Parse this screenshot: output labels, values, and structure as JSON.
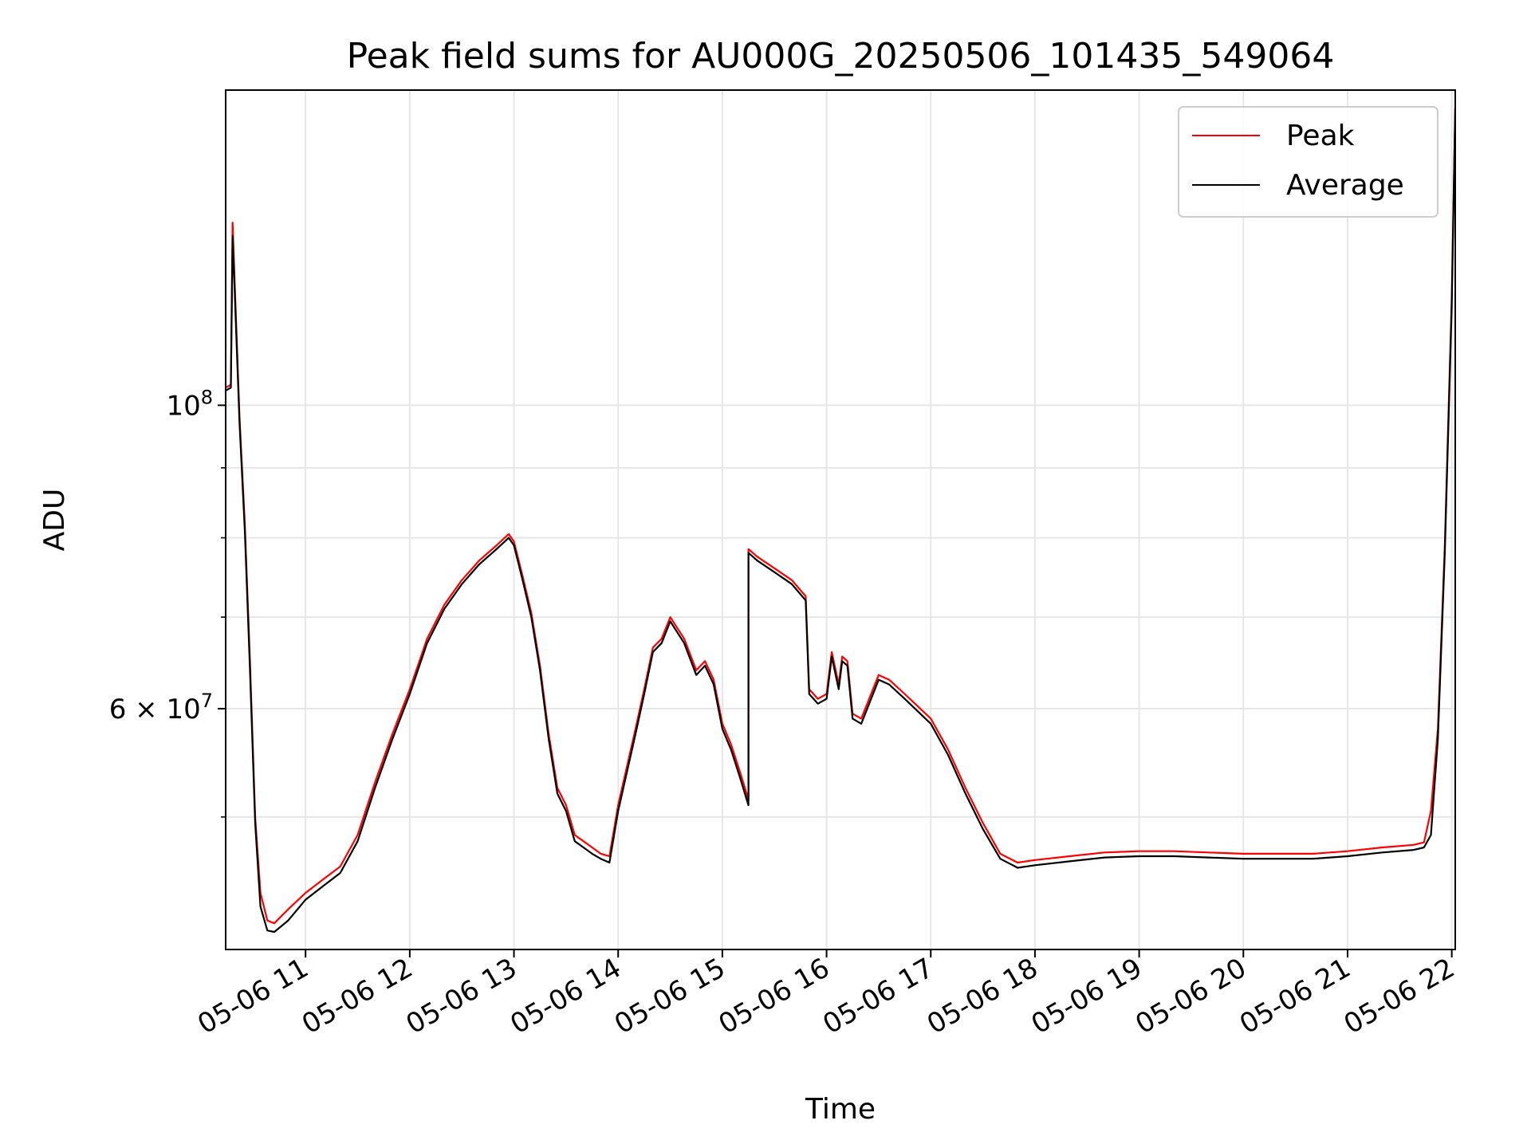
{
  "chart_data": {
    "type": "line",
    "title": "Peak field sums for AU000G_20250506_101435_549064",
    "xlabel": "Time",
    "ylabel": "ADU",
    "y_scale": "log",
    "ylim": [
      40000000,
      170000000
    ],
    "xlim": [
      "05-06 10:14",
      "05-06 22:02"
    ],
    "grid": true,
    "legend_position": "top-right",
    "x_ticks": [
      {
        "t": "05-06 11:00",
        "label": "05-06 11"
      },
      {
        "t": "05-06 12:00",
        "label": "05-06 12"
      },
      {
        "t": "05-06 13:00",
        "label": "05-06 13"
      },
      {
        "t": "05-06 14:00",
        "label": "05-06 14"
      },
      {
        "t": "05-06 15:00",
        "label": "05-06 15"
      },
      {
        "t": "05-06 16:00",
        "label": "05-06 16"
      },
      {
        "t": "05-06 17:00",
        "label": "05-06 17"
      },
      {
        "t": "05-06 18:00",
        "label": "05-06 18"
      },
      {
        "t": "05-06 19:00",
        "label": "05-06 19"
      },
      {
        "t": "05-06 20:00",
        "label": "05-06 20"
      },
      {
        "t": "05-06 21:00",
        "label": "05-06 21"
      },
      {
        "t": "05-06 22:00",
        "label": "05-06 22"
      }
    ],
    "y_major_ticks": [
      {
        "value": 100000000,
        "base": "10",
        "exp": "8"
      },
      {
        "value": 60000000,
        "base": "6 × 10",
        "exp": "7"
      }
    ],
    "y_minor_ticks": [
      50000000,
      70000000,
      80000000,
      90000000
    ],
    "series": [
      {
        "name": "Peak",
        "color": "#ff0000",
        "x": [
          "05-06 10:14",
          "05-06 10:17",
          "05-06 10:18",
          "05-06 10:19",
          "05-06 10:22",
          "05-06 10:25",
          "05-06 10:28",
          "05-06 10:31",
          "05-06 10:34",
          "05-06 10:38",
          "05-06 10:42",
          "05-06 10:46",
          "05-06 10:50",
          "05-06 11:00",
          "05-06 11:10",
          "05-06 11:20",
          "05-06 11:30",
          "05-06 11:40",
          "05-06 11:50",
          "05-06 12:00",
          "05-06 12:10",
          "05-06 12:20",
          "05-06 12:30",
          "05-06 12:40",
          "05-06 12:50",
          "05-06 12:57",
          "05-06 13:00",
          "05-06 13:05",
          "05-06 13:10",
          "05-06 13:15",
          "05-06 13:20",
          "05-06 13:25",
          "05-06 13:30",
          "05-06 13:35",
          "05-06 13:40",
          "05-06 13:45",
          "05-06 13:50",
          "05-06 13:55",
          "05-06 14:00",
          "05-06 14:10",
          "05-06 14:15",
          "05-06 14:20",
          "05-06 14:25",
          "05-06 14:30",
          "05-06 14:38",
          "05-06 14:45",
          "05-06 14:50",
          "05-06 14:55",
          "05-06 15:00",
          "05-06 15:05",
          "05-06 15:10",
          "05-06 15:15",
          "05-06 15:15",
          "05-06 15:20",
          "05-06 15:30",
          "05-06 15:40",
          "05-06 15:48",
          "05-06 15:50",
          "05-06 15:55",
          "05-06 16:00",
          "05-06 16:03",
          "05-06 16:07",
          "05-06 16:09",
          "05-06 16:12",
          "05-06 16:15",
          "05-06 16:20",
          "05-06 16:30",
          "05-06 16:36",
          "05-06 16:45",
          "05-06 17:00",
          "05-06 17:10",
          "05-06 17:20",
          "05-06 17:30",
          "05-06 17:40",
          "05-06 17:50",
          "05-06 18:00",
          "05-06 18:20",
          "05-06 18:40",
          "05-06 19:00",
          "05-06 19:20",
          "05-06 19:40",
          "05-06 20:00",
          "05-06 20:20",
          "05-06 20:40",
          "05-06 21:00",
          "05-06 21:20",
          "05-06 21:38",
          "05-06 21:44",
          "05-06 21:48",
          "05-06 21:52",
          "05-06 21:56",
          "05-06 22:00",
          "05-06 22:02"
        ],
        "values": [
          103000000,
          103500000,
          136000000,
          125000000,
          98000000,
          82000000,
          65000000,
          50000000,
          44000000,
          42000000,
          41800000,
          42300000,
          42800000,
          44000000,
          45000000,
          46000000,
          48500000,
          53000000,
          57500000,
          62000000,
          67500000,
          71500000,
          74500000,
          77000000,
          79000000,
          80500000,
          79500000,
          75000000,
          70500000,
          64500000,
          57500000,
          52500000,
          51000000,
          48500000,
          48000000,
          47500000,
          47000000,
          46800000,
          51000000,
          58000000,
          62000000,
          66500000,
          67500000,
          70000000,
          67500000,
          64000000,
          65000000,
          63000000,
          58500000,
          56500000,
          54000000,
          51500000,
          78500000,
          77500000,
          76000000,
          74500000,
          72500000,
          62000000,
          61000000,
          61500000,
          66000000,
          62500000,
          65500000,
          65000000,
          59500000,
          59000000,
          63500000,
          63000000,
          61500000,
          59000000,
          56000000,
          52500000,
          49500000,
          47000000,
          46300000,
          46500000,
          46800000,
          47100000,
          47200000,
          47200000,
          47100000,
          47000000,
          47000000,
          47000000,
          47200000,
          47500000,
          47700000,
          47900000,
          50500000,
          58000000,
          79000000,
          120000000,
          165000000
        ]
      },
      {
        "name": "Average",
        "color": "#000000",
        "x": [
          "05-06 10:14",
          "05-06 10:17",
          "05-06 10:18",
          "05-06 10:19",
          "05-06 10:22",
          "05-06 10:25",
          "05-06 10:28",
          "05-06 10:31",
          "05-06 10:34",
          "05-06 10:38",
          "05-06 10:42",
          "05-06 10:46",
          "05-06 10:50",
          "05-06 11:00",
          "05-06 11:10",
          "05-06 11:20",
          "05-06 11:30",
          "05-06 11:40",
          "05-06 11:50",
          "05-06 12:00",
          "05-06 12:10",
          "05-06 12:20",
          "05-06 12:30",
          "05-06 12:40",
          "05-06 12:50",
          "05-06 12:57",
          "05-06 13:00",
          "05-06 13:05",
          "05-06 13:10",
          "05-06 13:15",
          "05-06 13:20",
          "05-06 13:25",
          "05-06 13:30",
          "05-06 13:35",
          "05-06 13:40",
          "05-06 13:45",
          "05-06 13:50",
          "05-06 13:55",
          "05-06 14:00",
          "05-06 14:10",
          "05-06 14:15",
          "05-06 14:20",
          "05-06 14:25",
          "05-06 14:30",
          "05-06 14:38",
          "05-06 14:45",
          "05-06 14:50",
          "05-06 14:55",
          "05-06 15:00",
          "05-06 15:05",
          "05-06 15:10",
          "05-06 15:15",
          "05-06 15:15",
          "05-06 15:20",
          "05-06 15:30",
          "05-06 15:40",
          "05-06 15:48",
          "05-06 15:50",
          "05-06 15:55",
          "05-06 16:00",
          "05-06 16:03",
          "05-06 16:07",
          "05-06 16:09",
          "05-06 16:12",
          "05-06 16:15",
          "05-06 16:20",
          "05-06 16:30",
          "05-06 16:36",
          "05-06 16:45",
          "05-06 17:00",
          "05-06 17:10",
          "05-06 17:20",
          "05-06 17:30",
          "05-06 17:40",
          "05-06 17:50",
          "05-06 18:00",
          "05-06 18:20",
          "05-06 18:40",
          "05-06 19:00",
          "05-06 19:20",
          "05-06 19:40",
          "05-06 20:00",
          "05-06 20:20",
          "05-06 20:40",
          "05-06 21:00",
          "05-06 21:20",
          "05-06 21:38",
          "05-06 21:44",
          "05-06 21:48",
          "05-06 21:52",
          "05-06 21:56",
          "05-06 22:00",
          "05-06 22:02"
        ],
        "values": [
          102500000,
          103000000,
          133000000,
          123000000,
          97000000,
          81000000,
          64000000,
          49500000,
          43000000,
          41300000,
          41200000,
          41600000,
          42000000,
          43500000,
          44500000,
          45500000,
          48000000,
          52500000,
          57000000,
          61500000,
          67000000,
          71000000,
          74000000,
          76500000,
          78500000,
          80000000,
          79000000,
          74500000,
          70000000,
          64000000,
          57000000,
          52000000,
          50500000,
          48000000,
          47500000,
          47000000,
          46600000,
          46300000,
          50500000,
          57500000,
          61500000,
          66000000,
          67000000,
          69500000,
          67000000,
          63500000,
          64500000,
          62500000,
          58000000,
          56000000,
          53500000,
          51000000,
          78000000,
          77000000,
          75500000,
          74000000,
          72000000,
          61500000,
          60500000,
          61000000,
          65500000,
          62000000,
          65000000,
          64500000,
          59000000,
          58500000,
          63000000,
          62500000,
          61000000,
          58500000,
          55500000,
          52000000,
          49000000,
          46600000,
          45900000,
          46100000,
          46400000,
          46700000,
          46800000,
          46800000,
          46700000,
          46600000,
          46600000,
          46600000,
          46800000,
          47100000,
          47300000,
          47500000,
          48500000,
          57000000,
          78000000,
          118000000,
          165000000
        ]
      }
    ]
  }
}
